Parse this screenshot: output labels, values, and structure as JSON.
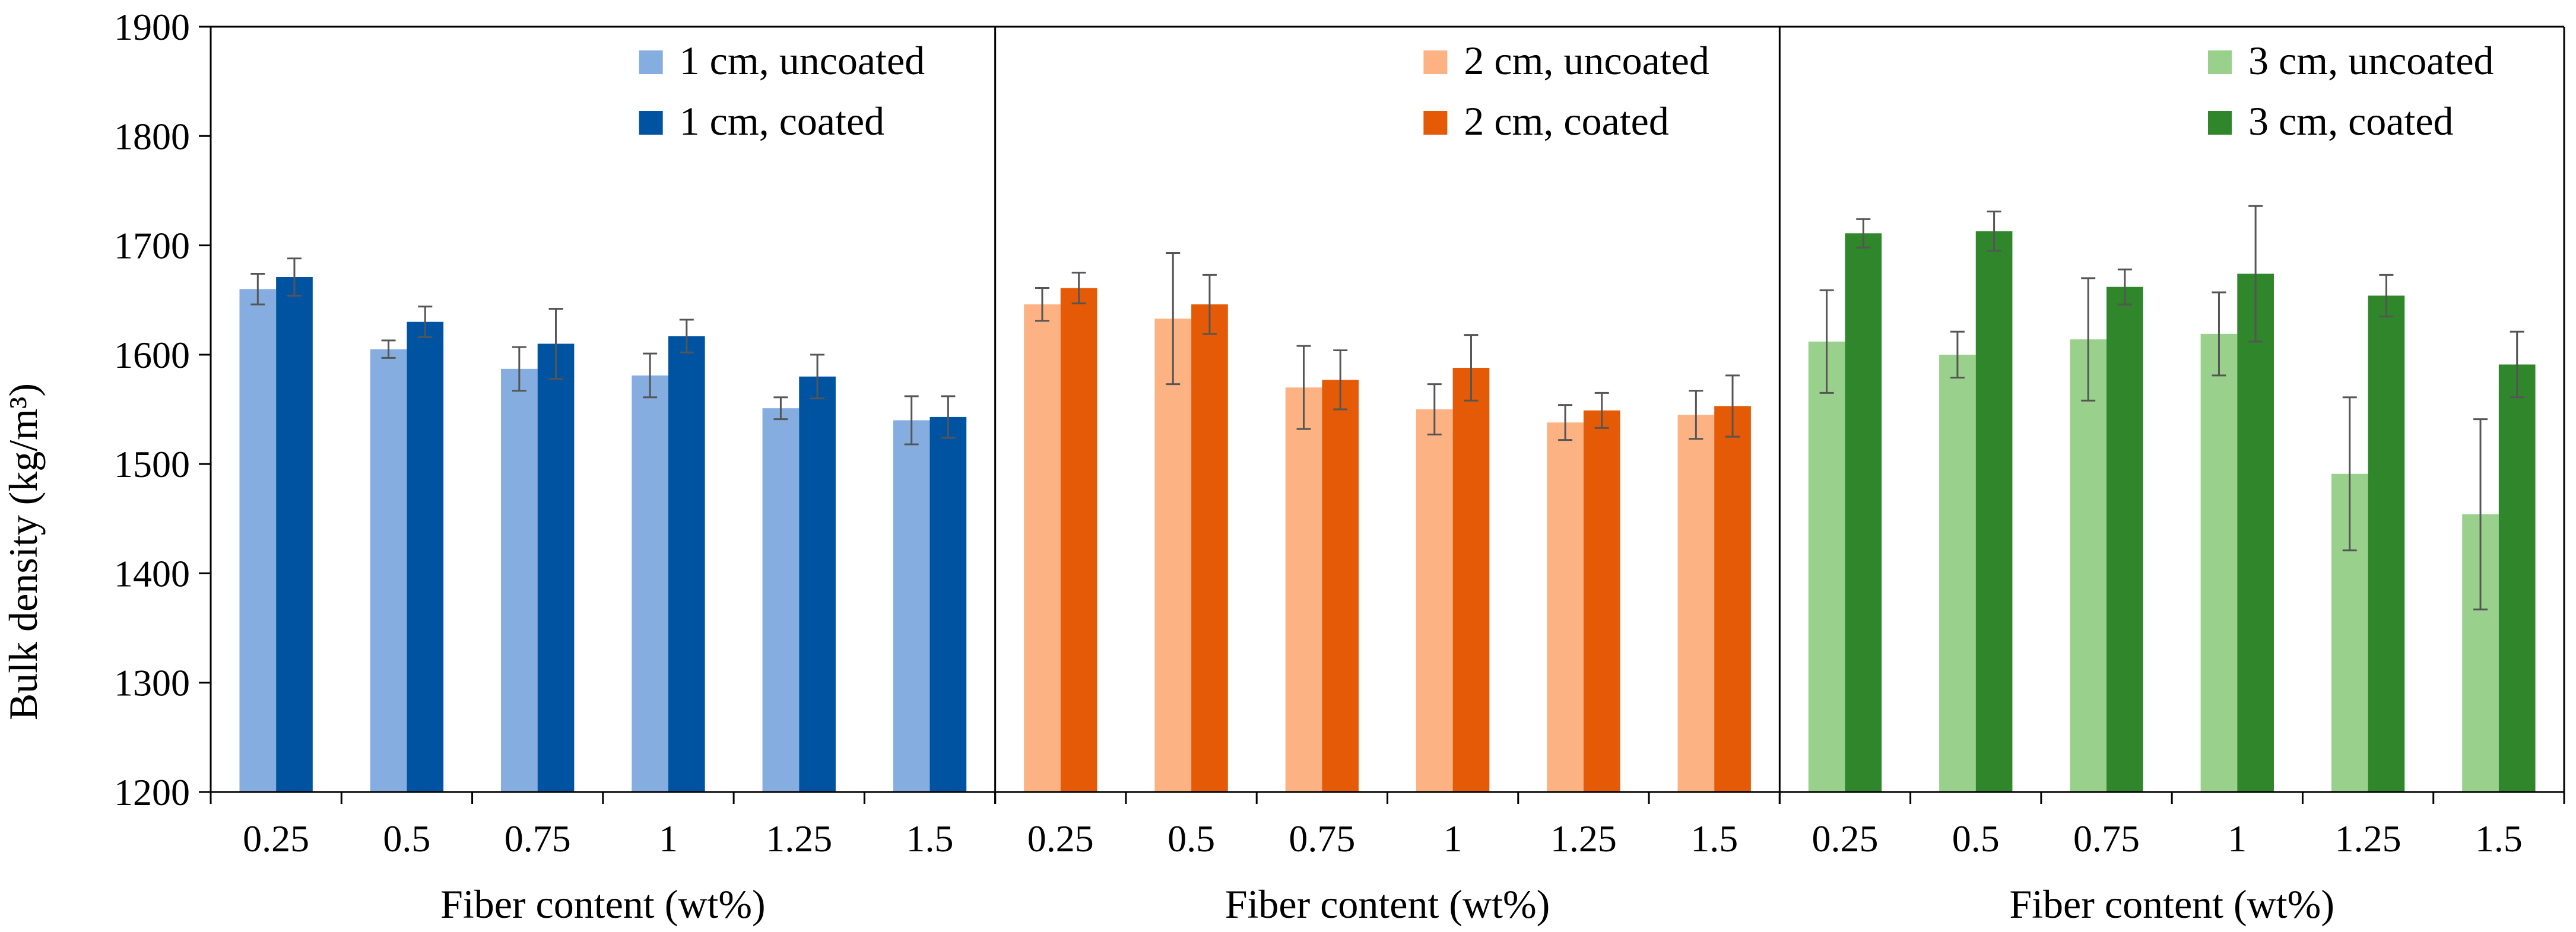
{
  "chart_data": {
    "type": "bar",
    "ylabel": "Bulk density (kg/m³)",
    "ylim": [
      1200,
      1900
    ],
    "yticks": [
      1200,
      1300,
      1400,
      1500,
      1600,
      1700,
      1800,
      1900
    ],
    "panels": [
      {
        "xlabel": "Fiber content (wt%)",
        "categories": [
          "0.25",
          "0.5",
          "0.75",
          "1",
          "1.25",
          "1.5"
        ],
        "series": [
          {
            "name": "1 cm, uncoated",
            "color": "#85ADE0",
            "values": [
              1660,
              1605,
              1587,
              1581,
              1551,
              1540
            ],
            "errors": [
              14,
              8,
              20,
              20,
              10,
              22
            ]
          },
          {
            "name": "1 cm, coated",
            "color": "#0053A0",
            "values": [
              1671,
              1630,
              1610,
              1617,
              1580,
              1543
            ],
            "errors": [
              17,
              14,
              32,
              15,
              20,
              19
            ]
          }
        ]
      },
      {
        "xlabel": "Fiber content (wt%)",
        "categories": [
          "0.25",
          "0.5",
          "0.75",
          "1",
          "1.25",
          "1.5"
        ],
        "series": [
          {
            "name": "2 cm, uncoated",
            "color": "#FDB283",
            "values": [
              1646,
              1633,
              1570,
              1550,
              1538,
              1545
            ],
            "errors": [
              15,
              60,
              38,
              23,
              16,
              22
            ]
          },
          {
            "name": "2 cm, coated",
            "color": "#E45A06",
            "values": [
              1661,
              1646,
              1577,
              1588,
              1549,
              1553
            ],
            "errors": [
              14,
              27,
              27,
              30,
              16,
              28
            ]
          }
        ]
      },
      {
        "xlabel": "Fiber content (wt%)",
        "categories": [
          "0.25",
          "0.5",
          "0.75",
          "1",
          "1.25",
          "1.5"
        ],
        "series": [
          {
            "name": "3 cm, uncoated",
            "color": "#99D18C",
            "values": [
              1612,
              1600,
              1614,
              1619,
              1491,
              1454
            ],
            "errors": [
              47,
              21,
              56,
              38,
              70,
              87
            ]
          },
          {
            "name": "3 cm, coated",
            "color": "#2F862B",
            "values": [
              1711,
              1713,
              1662,
              1674,
              1654,
              1591
            ],
            "errors": [
              13,
              18,
              16,
              62,
              19,
              30
            ]
          }
        ]
      }
    ],
    "grid": false,
    "legend": "top-right of each panel"
  }
}
